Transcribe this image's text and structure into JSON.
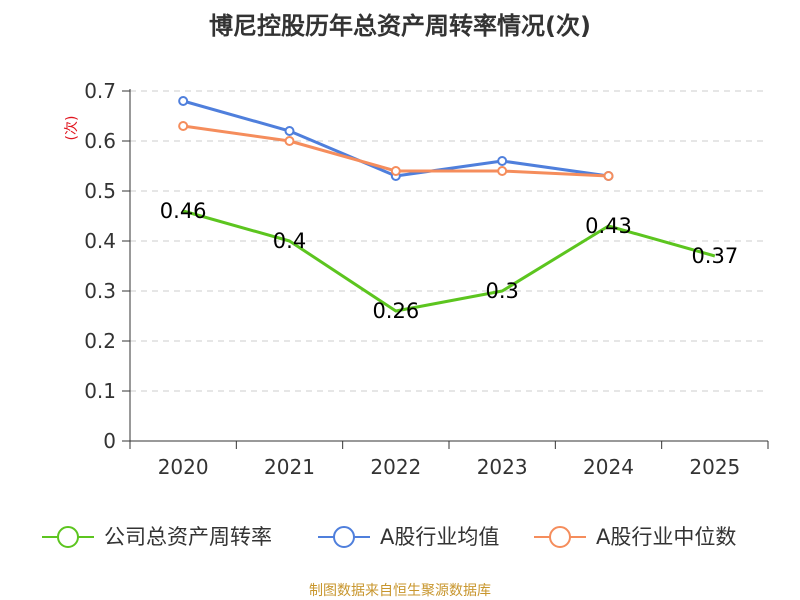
{
  "chart_data": {
    "type": "line",
    "title": "博尼控股历年总资产周转率情况(次)",
    "ylabel": "(次)",
    "xlabel": "",
    "categories": [
      "2020",
      "2021",
      "2022",
      "2023",
      "2024",
      "2025"
    ],
    "ylim": [
      0,
      0.7
    ],
    "yticks": [
      "0",
      "0.1",
      "0.2",
      "0.3",
      "0.4",
      "0.5",
      "0.6",
      "0.7"
    ],
    "grid": true,
    "legend_position": "bottom",
    "series": [
      {
        "name": "公司总资产周转率",
        "color": "#5cc51f",
        "values": [
          0.46,
          0.4,
          0.26,
          0.3,
          0.43,
          0.37
        ],
        "labels": [
          "0.46",
          "0.4",
          "0.26",
          "0.3",
          "0.43",
          "0.37"
        ]
      },
      {
        "name": "A股行业均值",
        "color": "#4f7fdc",
        "values": [
          0.68,
          0.62,
          0.53,
          0.56,
          0.53,
          null
        ]
      },
      {
        "name": "A股行业中位数",
        "color": "#f58d5c",
        "values": [
          0.63,
          0.6,
          0.54,
          0.54,
          0.53,
          null
        ]
      }
    ]
  },
  "footer": {
    "source": "制图数据来自恒生聚源数据库"
  }
}
